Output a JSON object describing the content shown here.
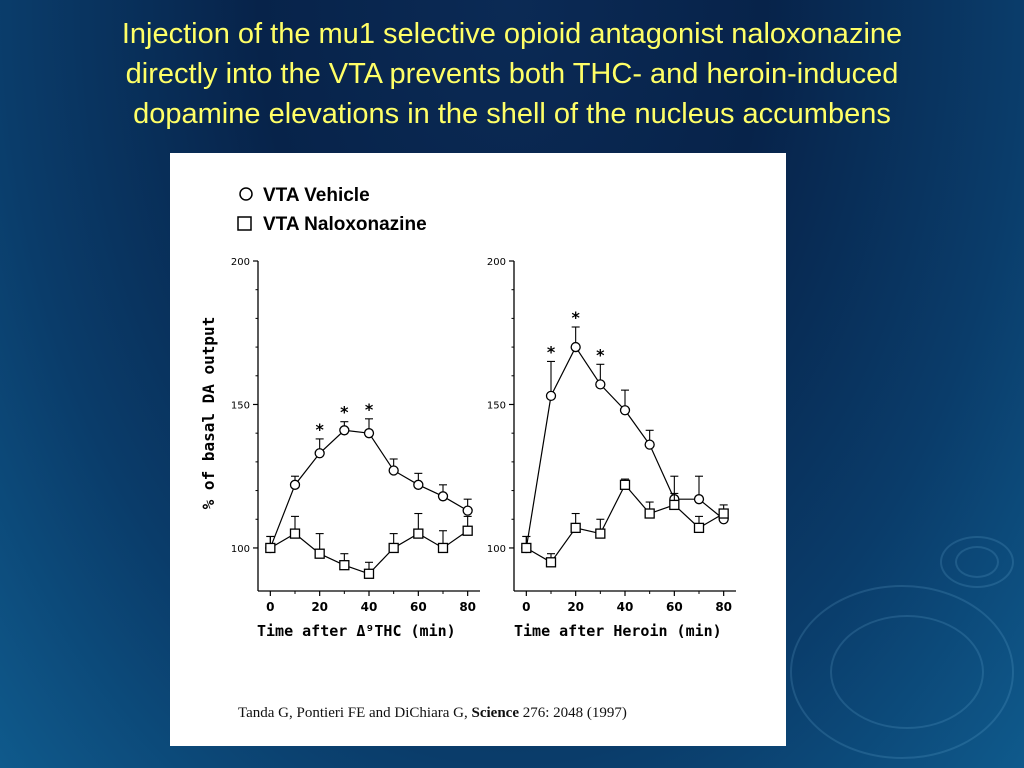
{
  "slide": {
    "title_lines": [
      "Injection of the mu1 selective opioid antagonist naloxonazine",
      "directly into the VTA prevents both THC- and heroin-induced",
      "dopamine elevations in the shell of the nucleus accumbens"
    ],
    "colors": {
      "title": "#ffff66",
      "background": "#0a3366"
    }
  },
  "figure": {
    "legend": [
      {
        "marker": "circle",
        "label": "VTA Vehicle"
      },
      {
        "marker": "square",
        "label": "VTA Naloxonazine"
      }
    ],
    "citation": {
      "authors": "Tanda G, Pontieri FE and DiChiara G,",
      "journal": "Science",
      "ref": "276: 2048 (1997)"
    }
  },
  "chart_data": [
    {
      "type": "line",
      "ylabel": "% of basal DA output",
      "xlabel": "Time after Δ⁹THC (min)",
      "ylim": [
        85,
        200
      ],
      "yticks": [
        100,
        150,
        200
      ],
      "xlim": [
        -5,
        85
      ],
      "xticks": [
        0,
        20,
        40,
        60,
        80
      ],
      "x": [
        0,
        10,
        20,
        30,
        40,
        50,
        60,
        70,
        80
      ],
      "series": [
        {
          "name": "VTA Vehicle",
          "marker": "circle",
          "values": [
            100,
            122,
            133,
            141,
            140,
            127,
            122,
            118,
            113
          ],
          "errors": [
            4,
            3,
            5,
            3,
            5,
            4,
            4,
            4,
            4
          ],
          "significant": [
            false,
            false,
            true,
            true,
            true,
            false,
            false,
            false,
            false
          ]
        },
        {
          "name": "VTA Naloxonazine",
          "marker": "square",
          "values": [
            100,
            105,
            98,
            94,
            91,
            100,
            105,
            100,
            106
          ],
          "errors": [
            4,
            6,
            7,
            4,
            4,
            5,
            7,
            6,
            5
          ],
          "significant": [
            false,
            false,
            false,
            false,
            false,
            false,
            false,
            false,
            false
          ]
        }
      ],
      "annotation": "*"
    },
    {
      "type": "line",
      "xlabel": "Time after Heroin (min)",
      "ylim": [
        85,
        200
      ],
      "yticks": [
        100,
        150,
        200
      ],
      "xlim": [
        -5,
        85
      ],
      "xticks": [
        0,
        20,
        40,
        60,
        80
      ],
      "x": [
        0,
        10,
        20,
        30,
        40,
        50,
        60,
        70,
        80
      ],
      "series": [
        {
          "name": "VTA Vehicle",
          "marker": "circle",
          "values": [
            100,
            153,
            170,
            157,
            148,
            136,
            117,
            117,
            110
          ],
          "errors": [
            4,
            12,
            7,
            7,
            7,
            5,
            8,
            8,
            3
          ],
          "significant": [
            false,
            true,
            true,
            true,
            false,
            false,
            false,
            false,
            false
          ]
        },
        {
          "name": "VTA Naloxonazine",
          "marker": "square",
          "values": [
            100,
            95,
            107,
            105,
            122,
            112,
            115,
            107,
            112
          ],
          "errors": [
            4,
            3,
            5,
            5,
            2,
            4,
            4,
            4,
            3
          ],
          "significant": [
            false,
            false,
            false,
            false,
            false,
            false,
            false,
            false,
            false
          ]
        }
      ],
      "annotation": "*"
    }
  ]
}
